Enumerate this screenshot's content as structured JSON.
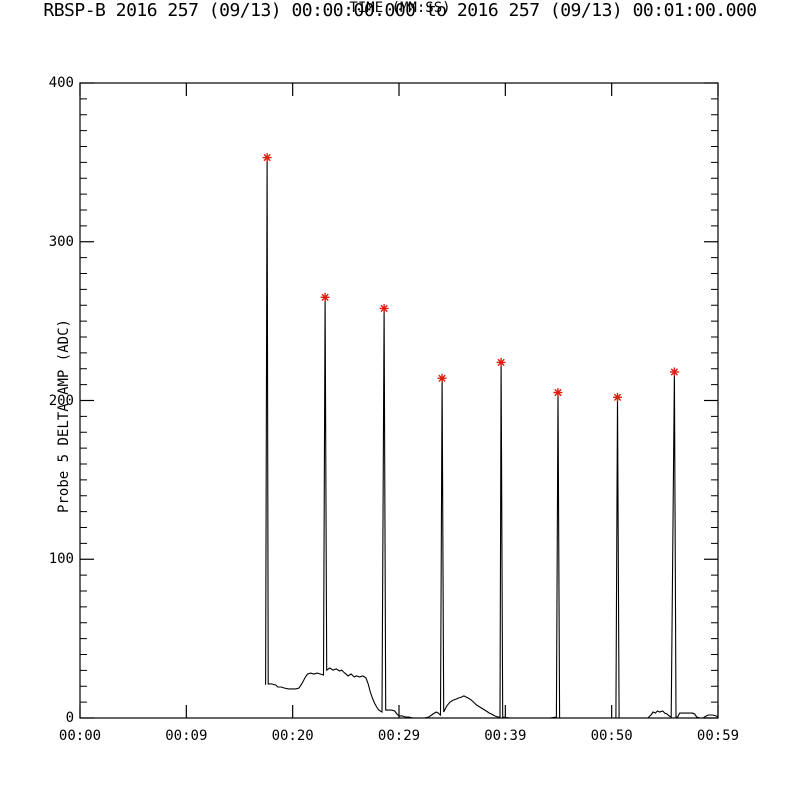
{
  "window": {
    "background_color": "#ffffff"
  },
  "chart_data": {
    "type": "line",
    "title": "RBSP-B 2016 257 (09/13) 00:00:00.000 to 2016 257 (09/13) 00:01:00.000",
    "xlabel": "TIME (MM:SS)",
    "ylabel": "Probe 5 DELTA AMP (ADC)",
    "x_tick_labels": [
      "00:00",
      "00:09",
      "00:20",
      "00:29",
      "00:39",
      "00:50",
      "00:59"
    ],
    "y_tick_labels": [
      "0",
      "100",
      "200",
      "300",
      "400"
    ],
    "y_ticks": [
      0,
      100,
      200,
      300,
      400
    ],
    "ylim": [
      0,
      400
    ],
    "xlim_seconds": [
      0,
      60
    ],
    "y_minor_step": 10,
    "grid": "off",
    "frame": "box-with-inward-ticks",
    "line_color": "#000000",
    "marker_color": "#dd1e10",
    "marker_symbol": "asterisk",
    "peaks": {
      "comment": "red asterisk markers: [time_seconds, ADC value]",
      "points": [
        [
          17.6,
          353
        ],
        [
          23.05,
          265
        ],
        [
          28.6,
          258
        ],
        [
          34.05,
          214
        ],
        [
          39.6,
          224
        ],
        [
          44.95,
          205
        ],
        [
          50.55,
          202
        ],
        [
          55.9,
          218
        ]
      ]
    },
    "series": [
      {
        "name": "Probe 5 DELTA AMP",
        "points": [
          [
            17.45,
            21
          ],
          [
            17.6,
            353
          ],
          [
            17.7,
            21.5
          ],
          [
            18.0,
            21.5
          ],
          [
            18.4,
            20.8
          ],
          [
            18.6,
            19.5
          ],
          [
            18.9,
            19.5
          ],
          [
            19.2,
            18.9
          ],
          [
            19.6,
            18.3
          ],
          [
            20.0,
            18.3
          ],
          [
            20.3,
            18.3
          ],
          [
            20.6,
            18.9
          ],
          [
            20.9,
            22
          ],
          [
            21.2,
            25.8
          ],
          [
            21.4,
            27.7
          ],
          [
            21.7,
            28.3
          ],
          [
            22.0,
            27.7
          ],
          [
            22.3,
            28.3
          ],
          [
            22.6,
            27.7
          ],
          [
            22.9,
            27.1
          ],
          [
            23.05,
            265
          ],
          [
            23.2,
            30.2
          ],
          [
            23.5,
            31.5
          ],
          [
            23.8,
            30.2
          ],
          [
            24.1,
            30.9
          ],
          [
            24.4,
            29.6
          ],
          [
            24.6,
            30.2
          ],
          [
            24.9,
            28.3
          ],
          [
            25.2,
            26.5
          ],
          [
            25.5,
            27.7
          ],
          [
            25.8,
            25.8
          ],
          [
            26.0,
            26.5
          ],
          [
            26.3,
            25.8
          ],
          [
            26.6,
            26.5
          ],
          [
            26.9,
            25.2
          ],
          [
            27.1,
            21.4
          ],
          [
            27.3,
            16.4
          ],
          [
            27.5,
            12.6
          ],
          [
            27.7,
            9.4
          ],
          [
            27.9,
            6.9
          ],
          [
            28.1,
            5.0
          ],
          [
            28.4,
            3.8
          ],
          [
            28.6,
            258
          ],
          [
            28.75,
            5.0
          ],
          [
            29.0,
            5.0
          ],
          [
            29.3,
            5.0
          ],
          [
            29.6,
            4.4
          ],
          [
            29.8,
            2.5
          ],
          [
            30.0,
            1.3
          ],
          [
            30.3,
            1.3
          ],
          [
            30.6,
            0.6
          ],
          [
            30.9,
            0.6
          ],
          [
            31.3,
            0
          ],
          [
            31.9,
            0
          ],
          [
            32.4,
            0
          ],
          [
            32.8,
            0.6
          ],
          [
            33.2,
            2.5
          ],
          [
            33.5,
            3.8
          ],
          [
            33.7,
            3.1
          ],
          [
            33.9,
            1.9
          ],
          [
            34.05,
            214
          ],
          [
            34.2,
            3.8
          ],
          [
            34.5,
            7.6
          ],
          [
            34.8,
            10.1
          ],
          [
            35.1,
            11.3
          ],
          [
            35.4,
            12.0
          ],
          [
            35.6,
            12.6
          ],
          [
            35.9,
            13.2
          ],
          [
            36.1,
            13.9
          ],
          [
            36.3,
            13.2
          ],
          [
            36.5,
            12.6
          ],
          [
            36.8,
            11.3
          ],
          [
            37.0,
            10.1
          ],
          [
            37.3,
            8.2
          ],
          [
            37.6,
            6.9
          ],
          [
            37.9,
            5.7
          ],
          [
            38.2,
            4.4
          ],
          [
            38.5,
            3.1
          ],
          [
            38.7,
            2.5
          ],
          [
            39.0,
            1.3
          ],
          [
            39.3,
            0.6
          ],
          [
            39.5,
            0.6
          ],
          [
            39.6,
            224
          ],
          [
            39.75,
            0.6
          ],
          [
            40.4,
            0
          ],
          [
            41.4,
            0
          ],
          [
            42.3,
            0
          ],
          [
            43.3,
            0
          ],
          [
            44.2,
            0
          ],
          [
            44.8,
            0.6
          ],
          [
            44.95,
            205
          ],
          [
            45.1,
            0
          ],
          [
            46.1,
            0
          ],
          [
            47.0,
            0
          ],
          [
            48.0,
            0
          ],
          [
            48.9,
            0
          ],
          [
            49.8,
            0
          ],
          [
            50.4,
            0
          ],
          [
            50.55,
            202
          ],
          [
            50.7,
            0
          ],
          [
            51.7,
            0
          ],
          [
            52.7,
            0
          ],
          [
            53.4,
            0
          ],
          [
            53.7,
            1.9
          ],
          [
            53.9,
            3.8
          ],
          [
            54.1,
            3.1
          ],
          [
            54.3,
            4.4
          ],
          [
            54.5,
            3.8
          ],
          [
            54.8,
            4.4
          ],
          [
            55.0,
            3.1
          ],
          [
            55.2,
            2.5
          ],
          [
            55.4,
            1.3
          ],
          [
            55.6,
            0.6
          ],
          [
            55.9,
            218
          ],
          [
            56.05,
            0.6
          ],
          [
            56.2,
            0.6
          ],
          [
            56.4,
            3.1
          ],
          [
            56.7,
            3.1
          ],
          [
            57.0,
            3.1
          ],
          [
            57.3,
            3.1
          ],
          [
            57.6,
            3.1
          ],
          [
            57.8,
            2.5
          ],
          [
            58.0,
            0.6
          ],
          [
            58.3,
            0
          ],
          [
            58.6,
            0
          ],
          [
            58.9,
            1.3
          ],
          [
            59.1,
            1.9
          ],
          [
            59.3,
            1.9
          ],
          [
            59.5,
            1.9
          ],
          [
            59.8,
            1.3
          ],
          [
            60.0,
            0.6
          ]
        ]
      }
    ]
  }
}
